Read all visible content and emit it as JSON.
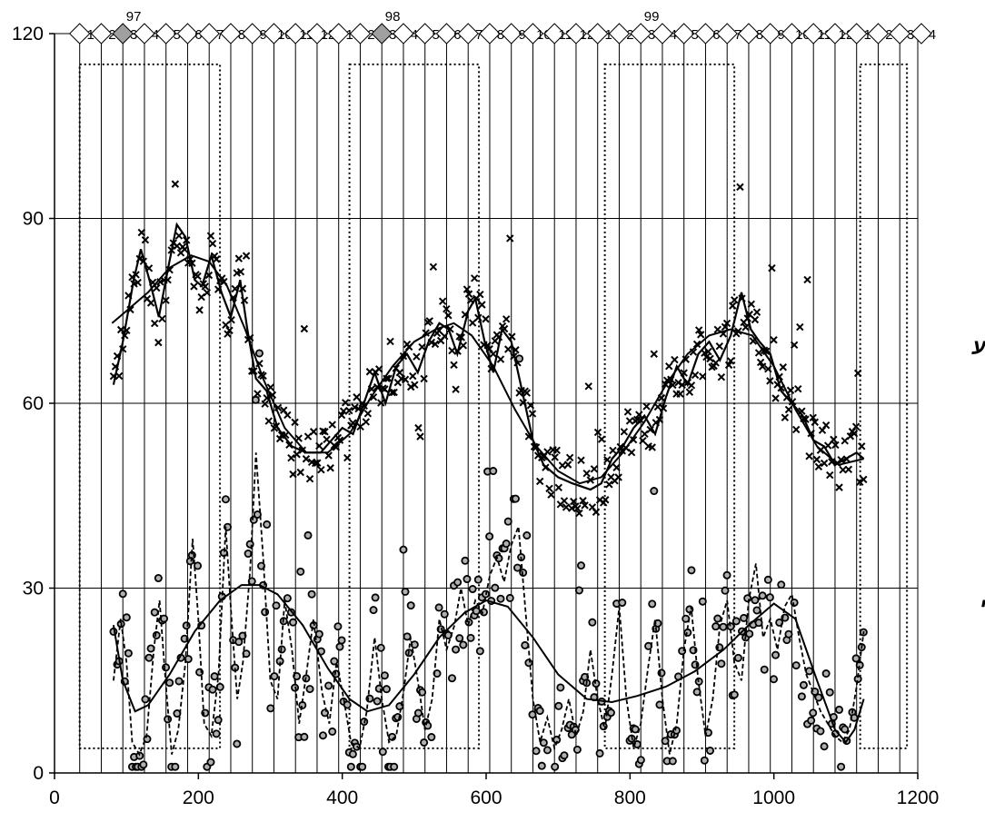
{
  "chart_data": {
    "type": "scatter",
    "title": "",
    "xlabel": "",
    "ylabel": "",
    "xlim": [
      0,
      1200
    ],
    "ylim": [
      0,
      120
    ],
    "x_ticks": [
      "0",
      "200",
      "400",
      "600",
      "800",
      "1000",
      "1200"
    ],
    "y_ticks": [
      "0",
      "30",
      "60",
      "90",
      "120"
    ],
    "grid": "horizontal and vertical",
    "month_markers": {
      "years": [
        {
          "label": "97",
          "x": 110
        },
        {
          "label": "98",
          "x": 470
        },
        {
          "label": "99",
          "x": 830
        }
      ],
      "start_x": 35,
      "spacing": 30,
      "labels": [
        "1",
        "2",
        "3",
        "4",
        "5",
        "6",
        "7",
        "8",
        "9",
        "10",
        "11",
        "12",
        "1",
        "2",
        "3",
        "4",
        "5",
        "6",
        "7",
        "8",
        "9",
        "10",
        "11",
        "12",
        "1",
        "2",
        "3",
        "4",
        "5",
        "6",
        "7",
        "8",
        "9",
        "10",
        "11",
        "12",
        "1",
        "2",
        "3",
        "4",
        "5",
        "6",
        "7",
        "8",
        "9",
        "10"
      ],
      "shaded": [
        2,
        14
      ]
    },
    "annotations": [
      {
        "text": "משקל ממוצע",
        "series": "upper"
      },
      {
        "text": "משקל כללי",
        "series": "lower"
      }
    ],
    "highlight_boxes": [
      {
        "x": [
          35,
          230
        ],
        "y": [
          4,
          115
        ]
      },
      {
        "x": [
          410,
          590
        ],
        "y": [
          4,
          115
        ]
      },
      {
        "x": [
          765,
          945
        ],
        "y": [
          4,
          115
        ]
      },
      {
        "x": [
          1120,
          1185
        ],
        "y": [
          4,
          115
        ]
      }
    ],
    "series": [
      {
        "marker": "x",
        "trend_smooth": [
          {
            "x": 80,
            "y": 73
          },
          {
            "x": 100,
            "y": 75
          },
          {
            "x": 130,
            "y": 78
          },
          {
            "x": 160,
            "y": 82
          },
          {
            "x": 190,
            "y": 84
          },
          {
            "x": 215,
            "y": 83
          },
          {
            "x": 240,
            "y": 79
          },
          {
            "x": 265,
            "y": 72
          },
          {
            "x": 290,
            "y": 64
          },
          {
            "x": 320,
            "y": 56
          },
          {
            "x": 350,
            "y": 52
          },
          {
            "x": 380,
            "y": 52
          },
          {
            "x": 410,
            "y": 55
          },
          {
            "x": 440,
            "y": 61
          },
          {
            "x": 470,
            "y": 66
          },
          {
            "x": 500,
            "y": 70
          },
          {
            "x": 530,
            "y": 72
          },
          {
            "x": 555,
            "y": 73
          },
          {
            "x": 580,
            "y": 71
          },
          {
            "x": 610,
            "y": 66
          },
          {
            "x": 640,
            "y": 59
          },
          {
            "x": 670,
            "y": 53
          },
          {
            "x": 700,
            "y": 49
          },
          {
            "x": 730,
            "y": 47
          },
          {
            "x": 760,
            "y": 48
          },
          {
            "x": 790,
            "y": 52
          },
          {
            "x": 820,
            "y": 57
          },
          {
            "x": 850,
            "y": 63
          },
          {
            "x": 880,
            "y": 68
          },
          {
            "x": 910,
            "y": 71
          },
          {
            "x": 940,
            "y": 72
          },
          {
            "x": 970,
            "y": 71
          },
          {
            "x": 1000,
            "y": 66
          },
          {
            "x": 1030,
            "y": 59
          },
          {
            "x": 1060,
            "y": 53
          },
          {
            "x": 1090,
            "y": 50
          },
          {
            "x": 1125,
            "y": 51
          }
        ],
        "trend_wavy": [
          {
            "x": 82,
            "y": 63
          },
          {
            "x": 95,
            "y": 70
          },
          {
            "x": 110,
            "y": 80
          },
          {
            "x": 120,
            "y": 85
          },
          {
            "x": 132,
            "y": 80
          },
          {
            "x": 145,
            "y": 74
          },
          {
            "x": 158,
            "y": 82
          },
          {
            "x": 170,
            "y": 89
          },
          {
            "x": 182,
            "y": 87
          },
          {
            "x": 195,
            "y": 80
          },
          {
            "x": 205,
            "y": 79
          },
          {
            "x": 218,
            "y": 84
          },
          {
            "x": 232,
            "y": 78
          },
          {
            "x": 245,
            "y": 74
          },
          {
            "x": 258,
            "y": 80
          },
          {
            "x": 268,
            "y": 72
          },
          {
            "x": 280,
            "y": 64
          },
          {
            "x": 295,
            "y": 62
          },
          {
            "x": 310,
            "y": 56
          },
          {
            "x": 330,
            "y": 53
          },
          {
            "x": 350,
            "y": 52
          },
          {
            "x": 370,
            "y": 52
          },
          {
            "x": 385,
            "y": 54
          },
          {
            "x": 400,
            "y": 56
          },
          {
            "x": 415,
            "y": 55
          },
          {
            "x": 430,
            "y": 60
          },
          {
            "x": 445,
            "y": 65
          },
          {
            "x": 460,
            "y": 60
          },
          {
            "x": 475,
            "y": 66
          },
          {
            "x": 490,
            "y": 68
          },
          {
            "x": 505,
            "y": 65
          },
          {
            "x": 520,
            "y": 70
          },
          {
            "x": 535,
            "y": 73
          },
          {
            "x": 548,
            "y": 72
          },
          {
            "x": 560,
            "y": 68
          },
          {
            "x": 575,
            "y": 75
          },
          {
            "x": 585,
            "y": 77
          },
          {
            "x": 598,
            "y": 70
          },
          {
            "x": 610,
            "y": 65
          },
          {
            "x": 622,
            "y": 72
          },
          {
            "x": 635,
            "y": 70
          },
          {
            "x": 650,
            "y": 62
          },
          {
            "x": 665,
            "y": 54
          },
          {
            "x": 680,
            "y": 50
          },
          {
            "x": 700,
            "y": 48
          },
          {
            "x": 720,
            "y": 47
          },
          {
            "x": 745,
            "y": 46
          },
          {
            "x": 760,
            "y": 47
          },
          {
            "x": 775,
            "y": 51
          },
          {
            "x": 790,
            "y": 53
          },
          {
            "x": 805,
            "y": 56
          },
          {
            "x": 820,
            "y": 58
          },
          {
            "x": 835,
            "y": 55
          },
          {
            "x": 850,
            "y": 61
          },
          {
            "x": 865,
            "y": 66
          },
          {
            "x": 880,
            "y": 63
          },
          {
            "x": 895,
            "y": 68
          },
          {
            "x": 910,
            "y": 70
          },
          {
            "x": 925,
            "y": 67
          },
          {
            "x": 940,
            "y": 71
          },
          {
            "x": 955,
            "y": 78
          },
          {
            "x": 968,
            "y": 72
          },
          {
            "x": 980,
            "y": 70
          },
          {
            "x": 995,
            "y": 68
          },
          {
            "x": 1010,
            "y": 62
          },
          {
            "x": 1025,
            "y": 60
          },
          {
            "x": 1040,
            "y": 58
          },
          {
            "x": 1055,
            "y": 54
          },
          {
            "x": 1070,
            "y": 53
          },
          {
            "x": 1085,
            "y": 50
          },
          {
            "x": 1100,
            "y": 51
          },
          {
            "x": 1115,
            "y": 52
          },
          {
            "x": 1125,
            "y": 51
          }
        ]
      },
      {
        "marker": "circle",
        "trend_smooth": [
          {
            "x": 82,
            "y": 24
          },
          {
            "x": 95,
            "y": 15
          },
          {
            "x": 112,
            "y": 10
          },
          {
            "x": 130,
            "y": 11
          },
          {
            "x": 160,
            "y": 16
          },
          {
            "x": 195,
            "y": 23
          },
          {
            "x": 230,
            "y": 28
          },
          {
            "x": 260,
            "y": 30.5
          },
          {
            "x": 285,
            "y": 30.5
          },
          {
            "x": 310,
            "y": 29
          },
          {
            "x": 345,
            "y": 24
          },
          {
            "x": 380,
            "y": 17
          },
          {
            "x": 410,
            "y": 12
          },
          {
            "x": 435,
            "y": 10
          },
          {
            "x": 465,
            "y": 11
          },
          {
            "x": 500,
            "y": 16
          },
          {
            "x": 535,
            "y": 22
          },
          {
            "x": 570,
            "y": 26
          },
          {
            "x": 600,
            "y": 28
          },
          {
            "x": 630,
            "y": 27
          },
          {
            "x": 665,
            "y": 22
          },
          {
            "x": 700,
            "y": 16
          },
          {
            "x": 740,
            "y": 12
          },
          {
            "x": 775,
            "y": 11.5
          },
          {
            "x": 810,
            "y": 12.5
          },
          {
            "x": 850,
            "y": 14
          },
          {
            "x": 890,
            "y": 16.5
          },
          {
            "x": 930,
            "y": 20
          },
          {
            "x": 965,
            "y": 24
          },
          {
            "x": 1000,
            "y": 27.5
          },
          {
            "x": 1030,
            "y": 25
          },
          {
            "x": 1060,
            "y": 15
          },
          {
            "x": 1085,
            "y": 7
          },
          {
            "x": 1100,
            "y": 5
          },
          {
            "x": 1112,
            "y": 7
          },
          {
            "x": 1125,
            "y": 12
          }
        ],
        "trend_wavy": [
          {
            "x": 82,
            "y": 15
          },
          {
            "x": 92,
            "y": 25
          },
          {
            "x": 100,
            "y": 18
          },
          {
            "x": 108,
            "y": 5
          },
          {
            "x": 118,
            "y": 3
          },
          {
            "x": 128,
            "y": 6
          },
          {
            "x": 138,
            "y": 20
          },
          {
            "x": 146,
            "y": 28
          },
          {
            "x": 155,
            "y": 14
          },
          {
            "x": 163,
            "y": 3
          },
          {
            "x": 172,
            "y": 7
          },
          {
            "x": 182,
            "y": 18
          },
          {
            "x": 192,
            "y": 38
          },
          {
            "x": 200,
            "y": 25
          },
          {
            "x": 208,
            "y": 8
          },
          {
            "x": 218,
            "y": 6
          },
          {
            "x": 228,
            "y": 16
          },
          {
            "x": 238,
            "y": 40
          },
          {
            "x": 246,
            "y": 25
          },
          {
            "x": 254,
            "y": 12
          },
          {
            "x": 262,
            "y": 18
          },
          {
            "x": 272,
            "y": 33
          },
          {
            "x": 280,
            "y": 52
          },
          {
            "x": 290,
            "y": 35
          },
          {
            "x": 300,
            "y": 15
          },
          {
            "x": 310,
            "y": 12
          },
          {
            "x": 320,
            "y": 28
          },
          {
            "x": 330,
            "y": 20
          },
          {
            "x": 340,
            "y": 8
          },
          {
            "x": 350,
            "y": 16
          },
          {
            "x": 360,
            "y": 25
          },
          {
            "x": 372,
            "y": 13
          },
          {
            "x": 382,
            "y": 8
          },
          {
            "x": 392,
            "y": 18
          },
          {
            "x": 402,
            "y": 12
          },
          {
            "x": 412,
            "y": 5
          },
          {
            "x": 424,
            "y": 4
          },
          {
            "x": 434,
            "y": 10
          },
          {
            "x": 445,
            "y": 22
          },
          {
            "x": 455,
            "y": 12
          },
          {
            "x": 465,
            "y": 5
          },
          {
            "x": 475,
            "y": 6
          },
          {
            "x": 485,
            "y": 13
          },
          {
            "x": 495,
            "y": 22
          },
          {
            "x": 505,
            "y": 15
          },
          {
            "x": 515,
            "y": 7
          },
          {
            "x": 525,
            "y": 12
          },
          {
            "x": 535,
            "y": 25
          },
          {
            "x": 545,
            "y": 20
          },
          {
            "x": 556,
            "y": 24
          },
          {
            "x": 565,
            "y": 30
          },
          {
            "x": 575,
            "y": 24
          },
          {
            "x": 585,
            "y": 28
          },
          {
            "x": 595,
            "y": 26
          },
          {
            "x": 605,
            "y": 32
          },
          {
            "x": 615,
            "y": 35
          },
          {
            "x": 625,
            "y": 31
          },
          {
            "x": 635,
            "y": 37
          },
          {
            "x": 645,
            "y": 40
          },
          {
            "x": 655,
            "y": 26
          },
          {
            "x": 665,
            "y": 12
          },
          {
            "x": 675,
            "y": 5
          },
          {
            "x": 685,
            "y": 9
          },
          {
            "x": 695,
            "y": 4
          },
          {
            "x": 705,
            "y": 7
          },
          {
            "x": 715,
            "y": 12
          },
          {
            "x": 725,
            "y": 6
          },
          {
            "x": 735,
            "y": 10
          },
          {
            "x": 745,
            "y": 20
          },
          {
            "x": 755,
            "y": 12
          },
          {
            "x": 765,
            "y": 7
          },
          {
            "x": 775,
            "y": 16
          },
          {
            "x": 785,
            "y": 27
          },
          {
            "x": 795,
            "y": 12
          },
          {
            "x": 805,
            "y": 4
          },
          {
            "x": 815,
            "y": 8
          },
          {
            "x": 825,
            "y": 17
          },
          {
            "x": 835,
            "y": 25
          },
          {
            "x": 845,
            "y": 12
          },
          {
            "x": 855,
            "y": 3
          },
          {
            "x": 865,
            "y": 8
          },
          {
            "x": 875,
            "y": 20
          },
          {
            "x": 885,
            "y": 27
          },
          {
            "x": 895,
            "y": 15
          },
          {
            "x": 905,
            "y": 6
          },
          {
            "x": 915,
            "y": 12
          },
          {
            "x": 925,
            "y": 24
          },
          {
            "x": 935,
            "y": 28
          },
          {
            "x": 945,
            "y": 18
          },
          {
            "x": 955,
            "y": 15
          },
          {
            "x": 965,
            "y": 28
          },
          {
            "x": 975,
            "y": 34
          },
          {
            "x": 985,
            "y": 22
          },
          {
            "x": 995,
            "y": 25
          },
          {
            "x": 1005,
            "y": 20
          },
          {
            "x": 1015,
            "y": 27
          },
          {
            "x": 1025,
            "y": 29
          },
          {
            "x": 1035,
            "y": 22
          },
          {
            "x": 1045,
            "y": 16
          },
          {
            "x": 1055,
            "y": 13
          },
          {
            "x": 1065,
            "y": 10
          },
          {
            "x": 1075,
            "y": 8
          },
          {
            "x": 1085,
            "y": 6
          },
          {
            "x": 1095,
            "y": 5
          },
          {
            "x": 1105,
            "y": 7
          },
          {
            "x": 1115,
            "y": 14
          },
          {
            "x": 1125,
            "y": 23
          }
        ]
      }
    ]
  }
}
